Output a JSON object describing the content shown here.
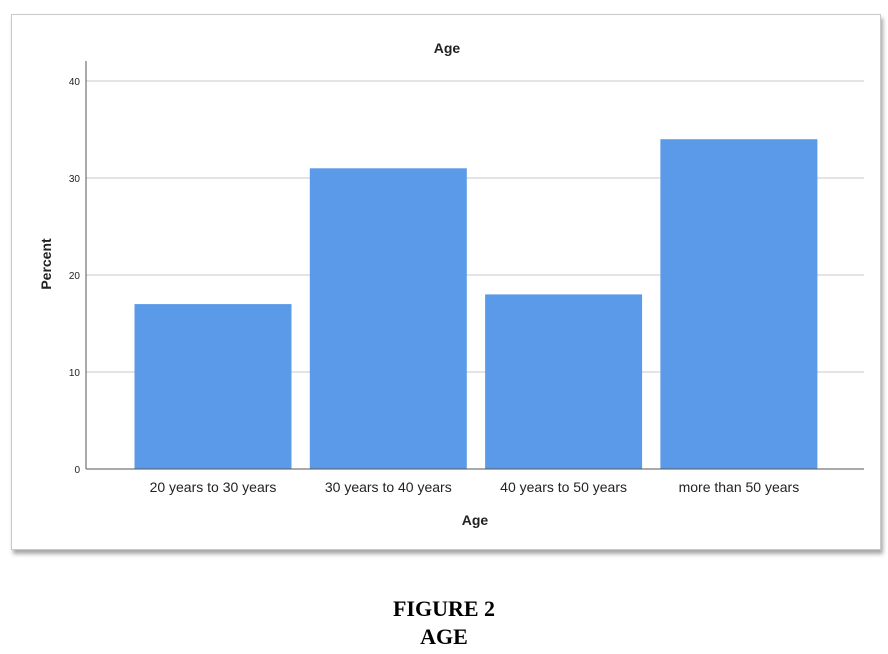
{
  "chart_data": {
    "type": "bar",
    "title": "Age",
    "xlabel": "Age",
    "ylabel": "Percent",
    "categories": [
      "20 years to 30 years",
      "30 years to 40 years",
      "40 years to 50 years",
      "more than 50 years"
    ],
    "values": [
      17,
      31,
      18,
      34
    ],
    "ylim": [
      0,
      40
    ],
    "yticks": [
      "0",
      "10",
      "20",
      "30",
      "40"
    ],
    "grid": true,
    "bar_color": "#5b9ae8"
  },
  "caption": {
    "line1": "FIGURE 2",
    "line2": "AGE"
  }
}
